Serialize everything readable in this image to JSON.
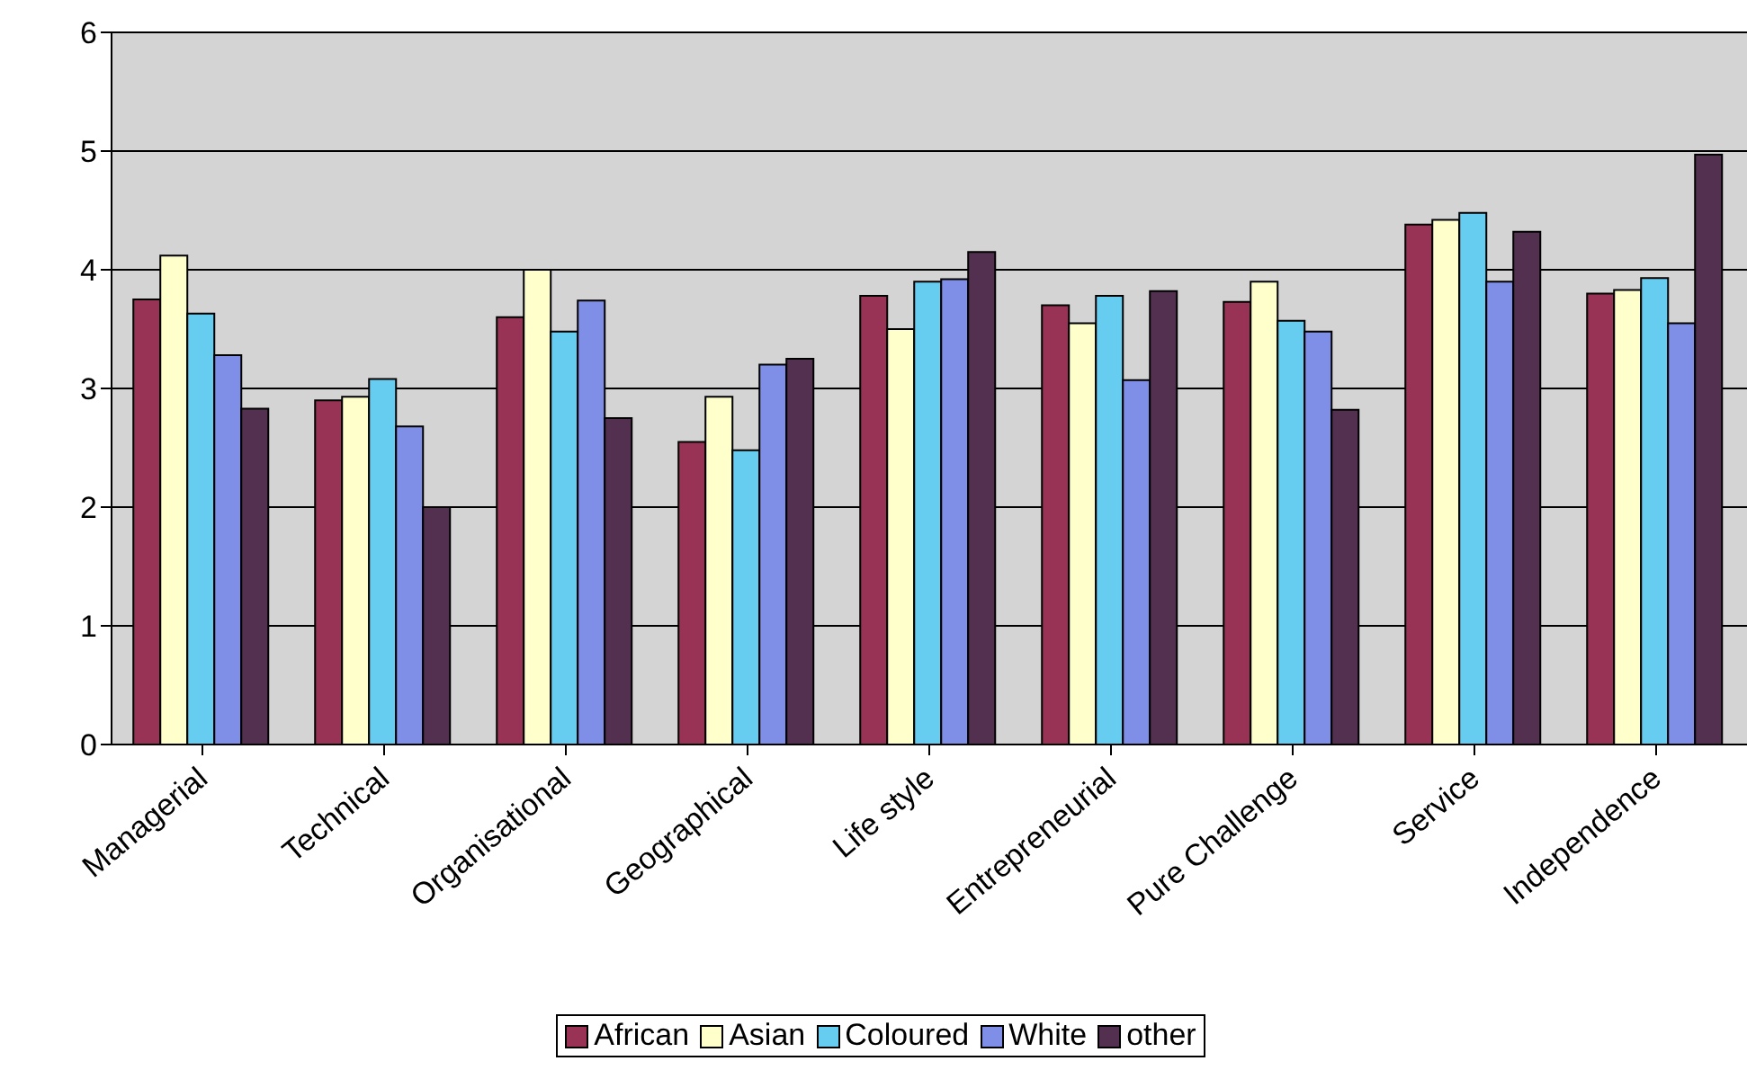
{
  "chart_data": {
    "type": "bar",
    "categories": [
      "Managerial",
      "Technical",
      "Organisational",
      "Geographical",
      "Life style",
      "Entrepreneurial",
      "Pure Challenge",
      "Service",
      "Independence"
    ],
    "series": [
      {
        "name": "African",
        "color": "#993355",
        "values": [
          3.75,
          2.9,
          3.6,
          2.55,
          3.78,
          3.7,
          3.73,
          4.38,
          3.8
        ]
      },
      {
        "name": "Asian",
        "color": "#ffffcc",
        "values": [
          4.12,
          2.93,
          4.0,
          2.93,
          3.5,
          3.55,
          3.9,
          4.42,
          3.83
        ]
      },
      {
        "name": "Coloured",
        "color": "#66ccf0",
        "values": [
          3.63,
          3.08,
          3.48,
          2.48,
          3.9,
          3.78,
          3.57,
          4.48,
          3.93
        ]
      },
      {
        "name": "White",
        "color": "#7f8fe8",
        "values": [
          3.28,
          2.68,
          3.74,
          3.2,
          3.92,
          3.07,
          3.48,
          3.9,
          3.55
        ]
      },
      {
        "name": "other",
        "color": "#53304f",
        "values": [
          2.83,
          2.0,
          2.75,
          3.25,
          4.15,
          3.82,
          2.82,
          4.32,
          4.97
        ]
      }
    ],
    "ylim": [
      0,
      6
    ],
    "yticks": [
      0,
      1,
      2,
      3,
      4,
      5,
      6
    ],
    "grid": "y",
    "legend": "bottom"
  }
}
